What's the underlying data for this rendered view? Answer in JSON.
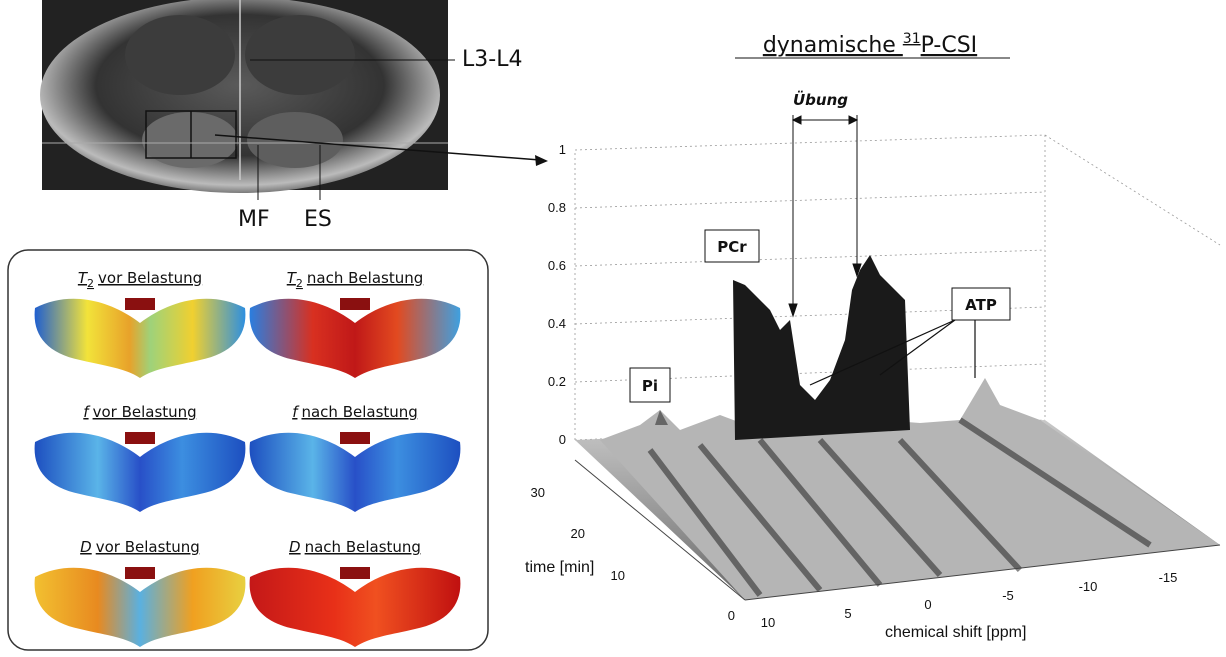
{
  "mri": {
    "labels": {
      "level": "L3-L4",
      "mf": "MF",
      "es": "ES"
    }
  },
  "maps": {
    "panels": [
      {
        "symbol": "T",
        "sub": "2",
        "text": "vor Belastung"
      },
      {
        "symbol": "T",
        "sub": "2",
        "text": "nach Belastung"
      },
      {
        "symbol": "f",
        "text": "vor Belastung"
      },
      {
        "symbol": "f",
        "text": "nach Belastung"
      },
      {
        "symbol": "D",
        "text": "vor Belastung"
      },
      {
        "symbol": "D",
        "text": "nach Belastung"
      }
    ]
  },
  "plot": {
    "title": {
      "pre": "dynamische ",
      "sup": "31",
      "post": "P-CSI"
    },
    "annotations": {
      "exercise": "Übung",
      "pcr": "PCr",
      "pi": "Pi",
      "atp": "ATP"
    },
    "z_ticks": [
      0,
      0.2,
      0.4,
      0.6,
      0.8,
      1
    ],
    "time_label": "time [min]",
    "time_ticks": [
      0,
      10,
      20,
      30
    ],
    "shift_label": "chemical shift [ppm]",
    "shift_ticks": [
      10,
      5,
      0,
      -5,
      -10,
      -15
    ]
  }
}
